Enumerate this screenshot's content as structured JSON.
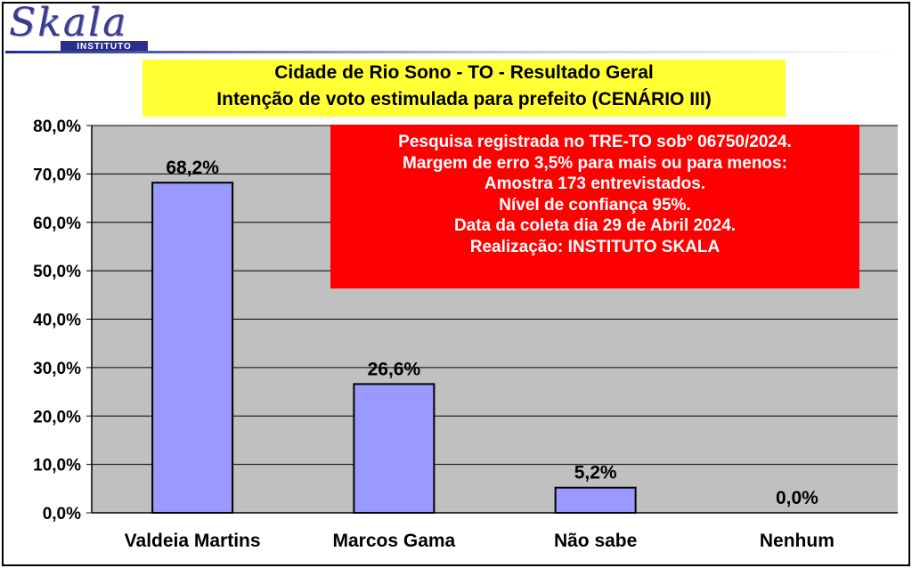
{
  "logo": {
    "word": "Skala",
    "tag": "INSTITUTO"
  },
  "title_lines": [
    "Cidade de Rio Sono - TO - Resultado Geral",
    "Intenção de voto estimulada para prefeito (CENÁRIO III)"
  ],
  "info_lines": [
    "Pesquisa registrada no TRE-TO sobº 06750/2024.",
    "Margem de erro 3,5% para mais ou para menos:",
    "Amostra 173 entrevistados.",
    "Nível de confiança 95%.",
    "Data da coleta dia 29 de Abril 2024.",
    "Realização: INSTITUTO SKALA"
  ],
  "colors": {
    "plot_background": "#c0c0c0",
    "bar_fill": "#9999ff",
    "title_background": "#ffff33",
    "info_background": "#ff0000"
  },
  "chart_data": {
    "type": "bar",
    "categories": [
      "Valdeia Martins",
      "Marcos Gama",
      "Não sabe",
      "Nenhum"
    ],
    "values": [
      68.2,
      26.6,
      5.2,
      0.0
    ],
    "data_labels": [
      "68,2%",
      "26,6%",
      "5,2%",
      "0,0%"
    ],
    "ylim": [
      0,
      80
    ],
    "yticks": [
      0,
      10,
      20,
      30,
      40,
      50,
      60,
      70,
      80
    ],
    "ytick_labels": [
      "0,0%",
      "10,0%",
      "20,0%",
      "30,0%",
      "40,0%",
      "50,0%",
      "60,0%",
      "70,0%",
      "80,0%"
    ],
    "grid": true,
    "legend": "none"
  }
}
